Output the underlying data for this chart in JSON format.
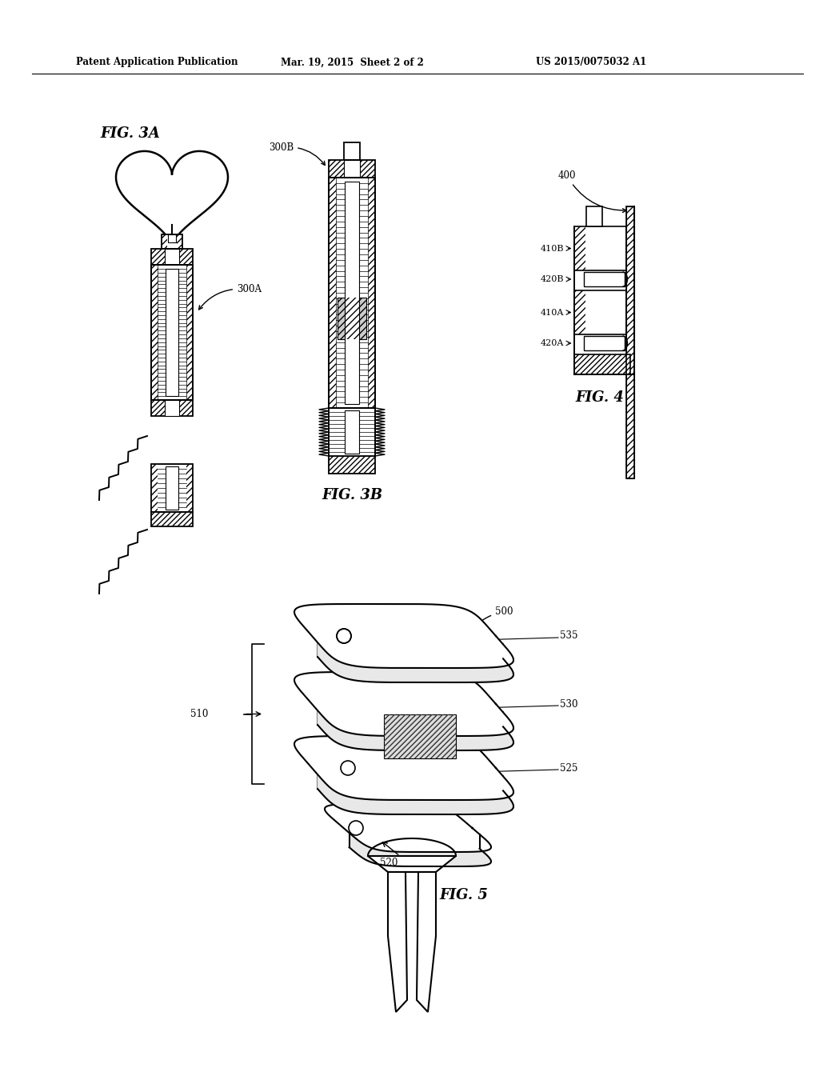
{
  "background_color": "#ffffff",
  "header_left": "Patent Application Publication",
  "header_center": "Mar. 19, 2015  Sheet 2 of 2",
  "header_right": "US 2015/0075032 A1",
  "fig3a_label": "FIG. 3A",
  "fig3b_label": "FIG. 3B",
  "fig4_label": "FIG. 4",
  "fig5_label": "FIG. 5",
  "line_color": "#000000"
}
